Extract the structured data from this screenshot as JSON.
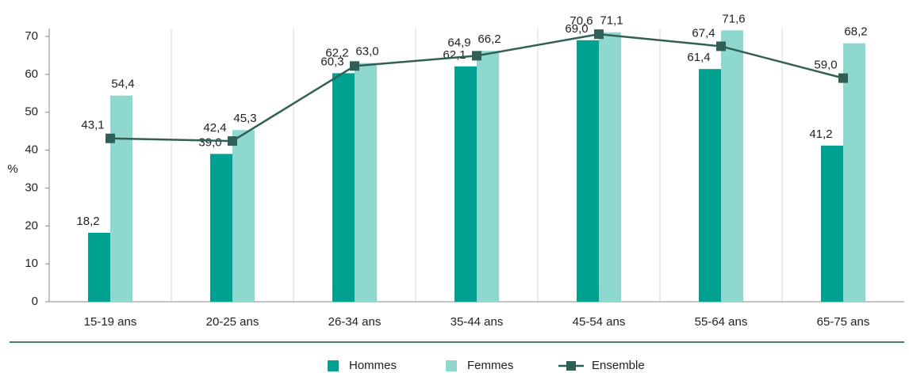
{
  "chart_data": {
    "type": "bar",
    "y_label": "%",
    "categories": [
      "15-19 ans",
      "20-25 ans",
      "26-34 ans",
      "35-44 ans",
      "45-54 ans",
      "55-64 ans",
      "65-75 ans"
    ],
    "series": [
      {
        "name": "Hommes",
        "type": "bar",
        "color": "#00a191",
        "values": [
          18.2,
          39.0,
          60.3,
          62.1,
          69.0,
          61.4,
          41.2
        ],
        "value_labels": [
          "18,2",
          "39,0",
          "60,3",
          "62,1",
          "69,0",
          "61,4",
          "41,2"
        ]
      },
      {
        "name": "Femmes",
        "type": "bar",
        "color": "#8fd8cf",
        "values": [
          54.4,
          45.3,
          63.0,
          66.2,
          71.1,
          71.6,
          68.2
        ],
        "value_labels": [
          "54,4",
          "45,3",
          "63,0",
          "66,2",
          "71,1",
          "71,6",
          "68,2"
        ]
      },
      {
        "name": "Ensemble",
        "type": "line",
        "color": "#2f5f55",
        "values": [
          43.1,
          42.4,
          62.2,
          64.9,
          70.6,
          67.4,
          59.0
        ],
        "value_labels": [
          "43,1",
          "42,4",
          "62,2",
          "64,9",
          "70,6",
          "67,4",
          "59,0"
        ]
      }
    ],
    "ylim": [
      0,
      70
    ],
    "yticks": [
      0,
      10,
      20,
      30,
      40,
      50,
      60,
      70
    ]
  }
}
